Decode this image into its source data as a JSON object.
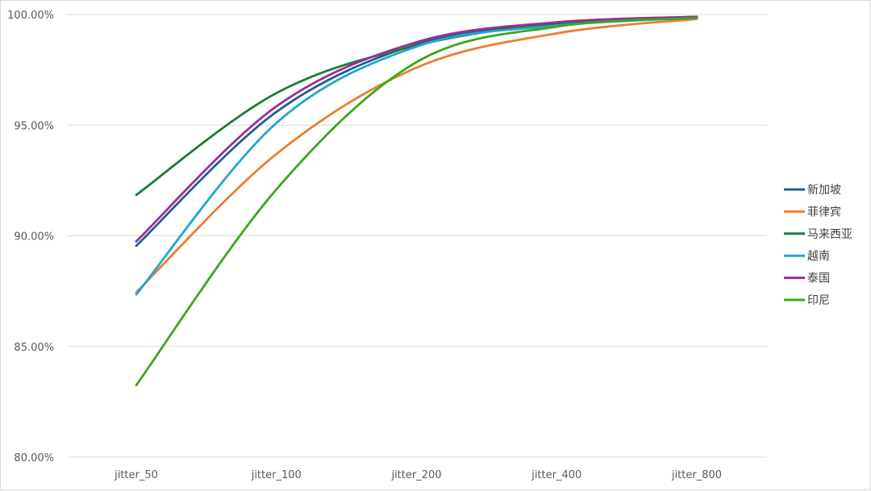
{
  "chart_data": {
    "type": "line",
    "title": "",
    "xlabel": "",
    "ylabel": "",
    "categories": [
      "jitter_50",
      "jitter_100",
      "jitter_200",
      "jitter_400",
      "jitter_800"
    ],
    "y_tick_labels": [
      "100.00%",
      "95.00%",
      "90.00%",
      "85.00%",
      "80.00%"
    ],
    "y_ticks": [
      100,
      95,
      90,
      85,
      80
    ],
    "ylim": [
      80,
      100
    ],
    "grid": true,
    "smooth": true,
    "legend_position": "right",
    "series": [
      {
        "name": "新加坡",
        "color": "#1f5f8b",
        "values": [
          89.55,
          95.6,
          98.65,
          99.6,
          99.88
        ]
      },
      {
        "name": "菲律宾",
        "color": "#ed7d31",
        "values": [
          87.45,
          93.7,
          97.6,
          99.15,
          99.8
        ]
      },
      {
        "name": "马来西亚",
        "color": "#1e7b34",
        "values": [
          91.85,
          96.45,
          98.6,
          99.6,
          99.9
        ]
      },
      {
        "name": "越南",
        "color": "#1fa6d0",
        "values": [
          87.35,
          95.1,
          98.55,
          99.5,
          99.85
        ]
      },
      {
        "name": "泰国",
        "color": "#9b2d9b",
        "values": [
          89.75,
          95.85,
          98.75,
          99.65,
          99.9
        ]
      },
      {
        "name": "印尼",
        "color": "#38a81c",
        "values": [
          83.25,
          92.1,
          97.85,
          99.45,
          99.85
        ]
      }
    ]
  }
}
